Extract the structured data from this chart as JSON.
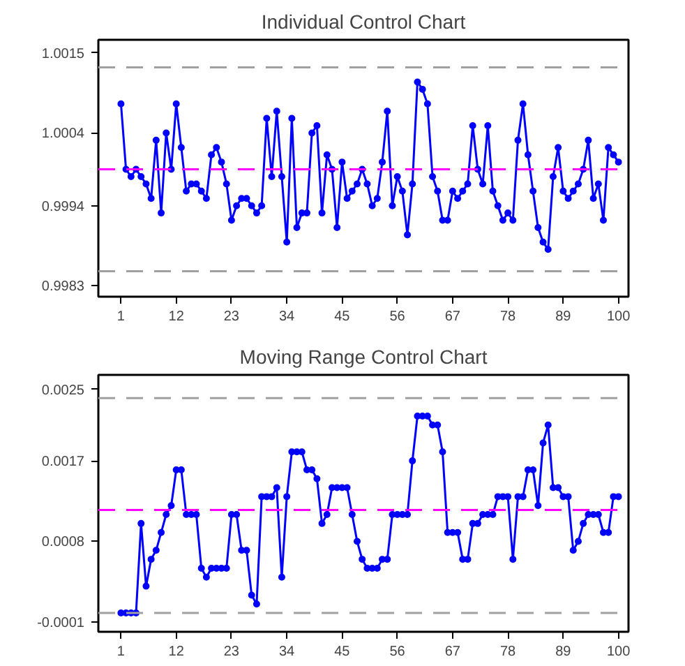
{
  "chart_data": [
    {
      "type": "line",
      "title": "Individual Control Chart",
      "marker": "circle",
      "line_style": "solid",
      "grid": false,
      "categories": [
        "1",
        null,
        null,
        null,
        null,
        null,
        null,
        null,
        null,
        null,
        null,
        "12",
        null,
        null,
        null,
        null,
        null,
        null,
        null,
        null,
        null,
        null,
        "23",
        null,
        null,
        null,
        null,
        null,
        null,
        null,
        null,
        null,
        null,
        "34",
        null,
        null,
        null,
        null,
        null,
        null,
        null,
        null,
        null,
        null,
        "45",
        null,
        null,
        null,
        null,
        null,
        null,
        null,
        null,
        null,
        null,
        "56",
        null,
        null,
        null,
        null,
        null,
        null,
        null,
        null,
        null,
        null,
        "67",
        null,
        null,
        null,
        null,
        null,
        null,
        null,
        null,
        null,
        null,
        "78",
        null,
        null,
        null,
        null,
        null,
        null,
        null,
        null,
        null,
        null,
        "89",
        null,
        null,
        null,
        null,
        null,
        null,
        null,
        null,
        null,
        null,
        "100"
      ],
      "ylim": [
        0.99815,
        1.00168
      ],
      "yticks": [
        1.0015,
        1.0004,
        0.9994,
        0.9983
      ],
      "series": [
        {
          "color": "#0000ff",
          "values": [
            1.0008,
            0.9999,
            0.9998,
            0.9999,
            0.9998,
            0.9997,
            0.9995,
            1.0003,
            0.9993,
            1.0004,
            0.9999,
            1.0008,
            1.0002,
            0.9996,
            0.9997,
            0.9997,
            0.9996,
            0.9995,
            1.0001,
            1.0002,
            1.0,
            0.9997,
            0.9992,
            0.9994,
            0.9995,
            0.9995,
            0.9994,
            0.9993,
            0.9994,
            1.0006,
            0.9998,
            1.0007,
            0.9998,
            0.9989,
            1.0006,
            0.9991,
            0.9993,
            0.9993,
            1.0004,
            1.0005,
            0.9993,
            1.0001,
            0.9999,
            0.9991,
            1.0,
            0.9995,
            0.9996,
            0.9997,
            0.9999,
            0.9997,
            0.9994,
            0.9995,
            1.0,
            1.0007,
            0.9994,
            0.9998,
            0.9996,
            0.999,
            0.9997,
            1.0011,
            1.001,
            1.0008,
            0.9998,
            0.9996,
            0.9992,
            0.9992,
            0.9996,
            0.9995,
            0.9996,
            0.9997,
            1.0005,
            0.9999,
            0.9997,
            1.0005,
            0.9996,
            0.9994,
            0.9992,
            0.9993,
            0.9992,
            1.0003,
            1.0008,
            1.0001,
            0.9996,
            0.9991,
            0.9989,
            0.9988,
            0.9998,
            1.0002,
            0.9996,
            0.9995,
            0.9996,
            0.9997,
            0.9999,
            1.0003,
            0.9995,
            0.9997,
            0.9992,
            1.0002,
            1.0001,
            1.0
          ]
        }
      ],
      "ref_lines": [
        {
          "axis": "y",
          "value": 1.0013,
          "color": "#a0a0a0",
          "line_style": "dashed"
        },
        {
          "axis": "y",
          "value": 0.9999,
          "color": "#ff00ff",
          "line_style": "dashed"
        },
        {
          "axis": "y",
          "value": 0.9985,
          "color": "#a0a0a0",
          "line_style": "dashed"
        }
      ]
    },
    {
      "type": "line",
      "title": "Moving Range Control Chart",
      "marker": "circle",
      "line_style": "solid",
      "grid": false,
      "categories": [
        "1",
        null,
        null,
        null,
        null,
        null,
        null,
        null,
        null,
        null,
        null,
        "12",
        null,
        null,
        null,
        null,
        null,
        null,
        null,
        null,
        null,
        null,
        "23",
        null,
        null,
        null,
        null,
        null,
        null,
        null,
        null,
        null,
        null,
        "34",
        null,
        null,
        null,
        null,
        null,
        null,
        null,
        null,
        null,
        null,
        "45",
        null,
        null,
        null,
        null,
        null,
        null,
        null,
        null,
        null,
        null,
        "56",
        null,
        null,
        null,
        null,
        null,
        null,
        null,
        null,
        null,
        null,
        "67",
        null,
        null,
        null,
        null,
        null,
        null,
        null,
        null,
        null,
        null,
        "78",
        null,
        null,
        null,
        null,
        null,
        null,
        null,
        null,
        null,
        null,
        "89",
        null,
        null,
        null,
        null,
        null,
        null,
        null,
        null,
        null,
        null,
        "100"
      ],
      "ylim": [
        -0.00021,
        0.00266
      ],
      "yticks": [
        0.0025,
        0.0017,
        0.0008,
        -0.0001
      ],
      "series": [
        {
          "color": "#0000ff",
          "values": [
            0.0,
            0.0,
            0.0,
            0.0,
            0.001,
            0.0003,
            0.0006,
            0.0007,
            0.0009,
            0.0011,
            0.0012,
            0.0016,
            0.0016,
            0.0011,
            0.0011,
            0.0011,
            0.0005,
            0.0004,
            0.0005,
            0.0005,
            0.0005,
            0.0005,
            0.0011,
            0.0011,
            0.0007,
            0.0007,
            0.0002,
            0.0001,
            0.0013,
            0.0013,
            0.0013,
            0.0014,
            0.0004,
            0.0013,
            0.0018,
            0.0018,
            0.0018,
            0.0016,
            0.0016,
            0.0015,
            0.001,
            0.0011,
            0.0014,
            0.0014,
            0.0014,
            0.0014,
            0.0011,
            0.0008,
            0.0006,
            0.0005,
            0.0005,
            0.0005,
            0.0006,
            0.0006,
            0.0011,
            0.0011,
            0.0011,
            0.0011,
            0.0017,
            0.0022,
            0.0022,
            0.0022,
            0.0021,
            0.0021,
            0.0018,
            0.0009,
            0.0009,
            0.0009,
            0.0006,
            0.0006,
            0.001,
            0.001,
            0.0011,
            0.0011,
            0.0011,
            0.0013,
            0.0013,
            0.0013,
            0.0006,
            0.0013,
            0.0013,
            0.0016,
            0.0016,
            0.0012,
            0.0019,
            0.0021,
            0.0014,
            0.0014,
            0.0013,
            0.0013,
            0.0007,
            0.0008,
            0.001,
            0.0011,
            0.0011,
            0.0011,
            0.0009,
            0.0009,
            0.0013,
            0.0013
          ]
        }
      ],
      "ref_lines": [
        {
          "axis": "y",
          "value": 0.0024,
          "color": "#a0a0a0",
          "line_style": "dashed"
        },
        {
          "axis": "y",
          "value": 0.00115,
          "color": "#ff00ff",
          "line_style": "dashed"
        },
        {
          "axis": "y",
          "value": 0.0,
          "color": "#a0a0a0",
          "line_style": "dashed"
        }
      ]
    }
  ]
}
